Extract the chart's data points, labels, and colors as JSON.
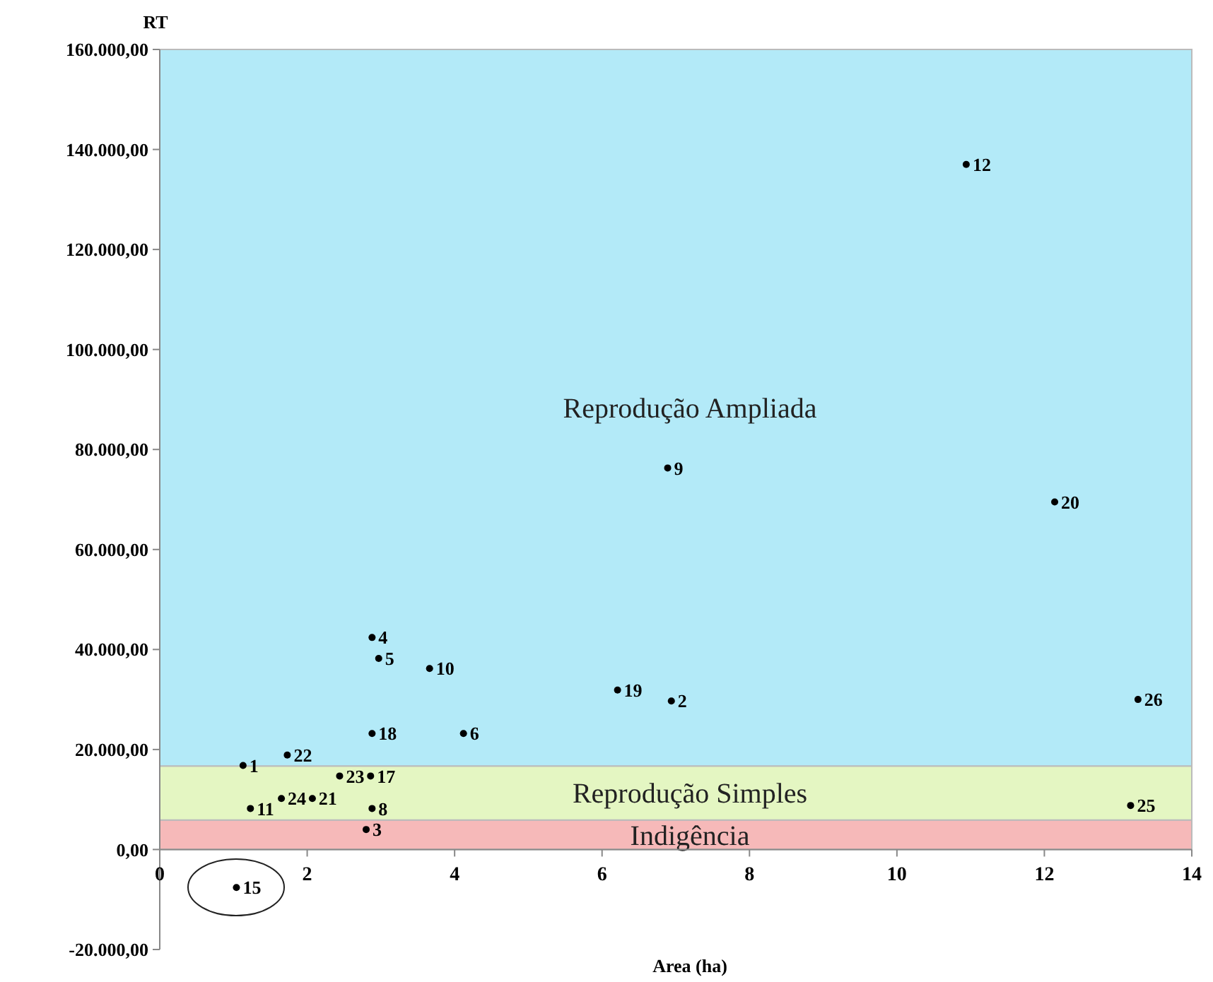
{
  "chart_data": {
    "type": "scatter",
    "xlabel": "Area (ha)",
    "ylabel": "RT",
    "xlim": [
      0,
      14
    ],
    "xticks": [
      0,
      2,
      4,
      6,
      8,
      10,
      12,
      14
    ],
    "ylim": [
      -20000,
      160000
    ],
    "yticks": [
      {
        "value": -20000,
        "label": "-20.000,00"
      },
      {
        "value": 0,
        "label": "0,00"
      },
      {
        "value": 20000,
        "label": "20.000,00"
      },
      {
        "value": 40000,
        "label": "40.000,00"
      },
      {
        "value": 60000,
        "label": "60.000,00"
      },
      {
        "value": 80000,
        "label": "80.000,00"
      },
      {
        "value": 100000,
        "label": "100.000,00"
      },
      {
        "value": 120000,
        "label": "120.000,00"
      },
      {
        "value": 140000,
        "label": "140.000,00"
      },
      {
        "value": 160000,
        "label": "160.000,00"
      }
    ],
    "grid": false,
    "marker": "circle",
    "bands": [
      {
        "axis": "y",
        "from": 0,
        "to": 5900,
        "label": "Indigência",
        "color": "#f6b9b9"
      },
      {
        "axis": "y",
        "from": 5900,
        "to": 16700,
        "label": "Reprodução Simples",
        "color": "#e4f6c2"
      },
      {
        "axis": "y",
        "from": 16700,
        "to": 160000,
        "label": "Reprodução Ampliada",
        "color": "#b3eaf8"
      }
    ],
    "series": [
      {
        "name": "1",
        "color": "#000000",
        "x": [
          1.13
        ],
        "values": [
          16800
        ]
      },
      {
        "name": "2",
        "color": "#000000",
        "x": [
          6.94
        ],
        "values": [
          29700
        ]
      },
      {
        "name": "3",
        "color": "#000000",
        "x": [
          2.8
        ],
        "values": [
          4000
        ]
      },
      {
        "name": "4",
        "color": "#000000",
        "x": [
          2.88
        ],
        "values": [
          42400
        ]
      },
      {
        "name": "5",
        "color": "#000000",
        "x": [
          2.97
        ],
        "values": [
          38200
        ]
      },
      {
        "name": "6",
        "color": "#000000",
        "x": [
          4.12
        ],
        "values": [
          23200
        ]
      },
      {
        "name": "17",
        "color": "#000000",
        "x": [
          2.86
        ],
        "values": [
          14700
        ]
      },
      {
        "name": "8",
        "color": "#000000",
        "x": [
          2.88
        ],
        "values": [
          8200
        ]
      },
      {
        "name": "9",
        "color": "#000000",
        "x": [
          6.89
        ],
        "values": [
          76300
        ]
      },
      {
        "name": "10",
        "color": "#000000",
        "x": [
          3.66
        ],
        "values": [
          36200
        ]
      },
      {
        "name": "11",
        "color": "#000000",
        "x": [
          1.23
        ],
        "values": [
          8200
        ]
      },
      {
        "name": "12",
        "color": "#000000",
        "x": [
          10.94
        ],
        "values": [
          137000
        ]
      },
      {
        "name": "15",
        "color": "#000000",
        "x": [
          1.04
        ],
        "values": [
          -7600
        ]
      },
      {
        "name": "18",
        "color": "#000000",
        "x": [
          2.88
        ],
        "values": [
          23200
        ]
      },
      {
        "name": "19",
        "color": "#000000",
        "x": [
          6.21
        ],
        "values": [
          31900
        ]
      },
      {
        "name": "20",
        "color": "#000000",
        "x": [
          12.14
        ],
        "values": [
          69500
        ]
      },
      {
        "name": "21",
        "color": "#000000",
        "x": [
          2.07
        ],
        "values": [
          10200
        ]
      },
      {
        "name": "22",
        "color": "#000000",
        "x": [
          1.73
        ],
        "values": [
          18900
        ]
      },
      {
        "name": "23",
        "color": "#000000",
        "x": [
          2.44
        ],
        "values": [
          14700
        ]
      },
      {
        "name": "24",
        "color": "#000000",
        "x": [
          1.65
        ],
        "values": [
          10200
        ]
      },
      {
        "name": "25",
        "color": "#000000",
        "x": [
          13.17
        ],
        "values": [
          8800
        ]
      },
      {
        "name": "26",
        "color": "#000000",
        "x": [
          13.27
        ],
        "values": [
          30000
        ]
      }
    ]
  }
}
